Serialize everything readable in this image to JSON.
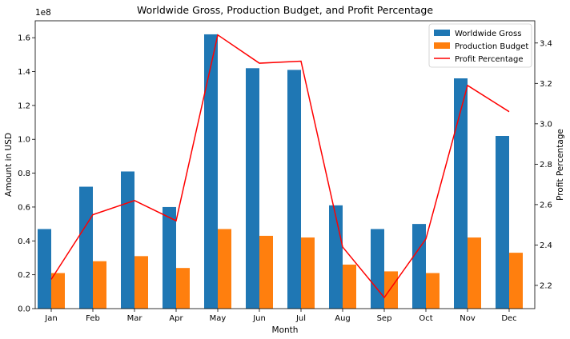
{
  "chart_data": {
    "type": "bar",
    "title": "Worldwide Gross, Production Budget, and Profit Percentage",
    "xlabel": "Month",
    "ylabel": "Amount in USD",
    "y2label": "Profit Percentage",
    "y_multiplier_label": "1e8",
    "categories": [
      "Jan",
      "Feb",
      "Mar",
      "Apr",
      "May",
      "Jun",
      "Jul",
      "Aug",
      "Sep",
      "Oct",
      "Nov",
      "Dec"
    ],
    "ylim": [
      0,
      1.7
    ],
    "yticks": [
      0.0,
      0.2,
      0.4,
      0.6,
      0.8,
      1.0,
      1.2,
      1.4,
      1.6
    ],
    "ytick_labels": [
      "0.0",
      "0.2",
      "0.4",
      "0.6",
      "0.8",
      "1.0",
      "1.2",
      "1.4",
      "1.6"
    ],
    "y2lim": [
      2.085,
      3.51
    ],
    "y2ticks": [
      2.2,
      2.4,
      2.6,
      2.8,
      3.0,
      3.2,
      3.4
    ],
    "y2tick_labels": [
      "2.2",
      "2.4",
      "2.6",
      "2.8",
      "3.0",
      "3.2",
      "3.4"
    ],
    "legend_position": "top-right",
    "grid": false,
    "series": [
      {
        "name": "Worldwide Gross",
        "kind": "bar",
        "axis": "left",
        "color": "#1f77b4",
        "values": [
          0.47,
          0.72,
          0.81,
          0.6,
          1.62,
          1.42,
          1.41,
          0.61,
          0.47,
          0.5,
          1.36,
          1.02
        ]
      },
      {
        "name": "Production Budget",
        "kind": "bar",
        "axis": "left",
        "color": "#ff7f0e",
        "values": [
          0.21,
          0.28,
          0.31,
          0.24,
          0.47,
          0.43,
          0.42,
          0.26,
          0.22,
          0.21,
          0.42,
          0.33
        ]
      },
      {
        "name": "Profit Percentage",
        "kind": "line",
        "axis": "right",
        "color": "#ff0000",
        "values": [
          2.23,
          2.55,
          2.62,
          2.52,
          3.44,
          3.3,
          3.31,
          2.39,
          2.14,
          2.43,
          3.19,
          3.06
        ]
      }
    ]
  }
}
